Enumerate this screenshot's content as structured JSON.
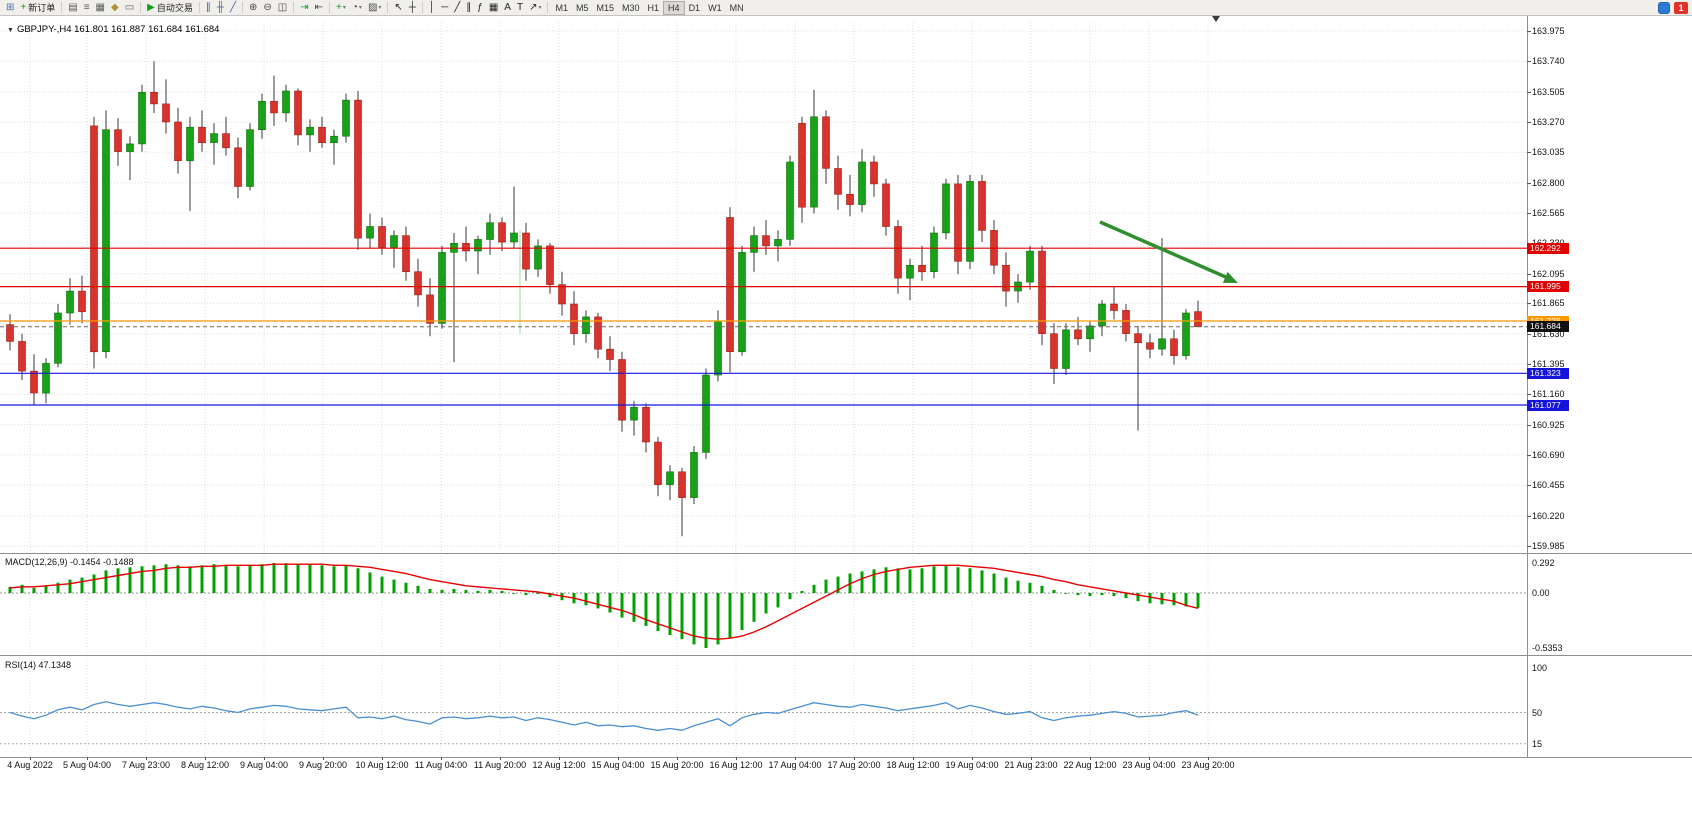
{
  "chart": {
    "title": "GBPJPY-,H4 161.801 161.887 161.684 161.684",
    "symbol": "GBPJPY-",
    "timeframe": "H4",
    "ohlc": {
      "open": "161.801",
      "high": "161.887",
      "low": "161.684",
      "close": "161.684"
    }
  },
  "icons": {
    "one_click_trading": "▼"
  },
  "toolbar": {
    "items": [
      {
        "kind": "icon",
        "base": "new-chart",
        "glyph": "⊞",
        "color": "#4a6fae"
      },
      {
        "kind": "button",
        "base": "new-order",
        "glyph": "+",
        "color": "#1f9d1f",
        "label": "新订单"
      },
      {
        "kind": "sep"
      },
      {
        "kind": "icon",
        "base": "profiles",
        "glyph": "▤",
        "color": "#5a5a5a"
      },
      {
        "kind": "icon",
        "base": "market-watch",
        "glyph": "≡",
        "color": "#5a5a5a"
      },
      {
        "kind": "icon",
        "base": "data-window",
        "glyph": "▦",
        "color": "#5a5a5a"
      },
      {
        "kind": "icon",
        "base": "navigator",
        "glyph": "◆",
        "color": "#b08f2e"
      },
      {
        "kind": "icon",
        "base": "terminal",
        "glyph": "▭",
        "color": "#5a5a5a"
      },
      {
        "kind": "sep"
      },
      {
        "kind": "button",
        "base": "auto-trading",
        "glyph": "▶",
        "color": "#16a016",
        "label": "自动交易"
      },
      {
        "kind": "sep"
      },
      {
        "kind": "icon",
        "base": "bar-chart-mode",
        "glyph": "∥",
        "color": "#39629c"
      },
      {
        "kind": "icon",
        "base": "candlestick-mode",
        "glyph": "╫",
        "color": "#39629c"
      },
      {
        "kind": "icon",
        "base": "line-chart-mode",
        "glyph": "╱",
        "color": "#39629c"
      },
      {
        "kind": "sep"
      },
      {
        "kind": "icon",
        "base": "zoom-in",
        "glyph": "⊕",
        "color": "#4a4a4a"
      },
      {
        "kind": "icon",
        "base": "zoom-out",
        "glyph": "⊖",
        "color": "#4a4a4a"
      },
      {
        "kind": "icon",
        "base": "tile-windows",
        "glyph": "◫",
        "color": "#4a4a4a"
      },
      {
        "kind": "sep"
      },
      {
        "kind": "icon",
        "base": "auto-scroll",
        "glyph": "⇥",
        "color": "#1f9d1f"
      },
      {
        "kind": "icon",
        "base": "chart-shift",
        "glyph": "⇤",
        "color": "#4a4a4a"
      },
      {
        "kind": "sep"
      },
      {
        "kind": "dd",
        "base": "indicators",
        "glyph": "+",
        "color": "#1f9d1f"
      },
      {
        "kind": "dd",
        "base": "periods",
        "glyph": "◔",
        "color": "#4a4a4a"
      },
      {
        "kind": "dd",
        "base": "templates",
        "glyph": "▨",
        "color": "#4a4a4a"
      },
      {
        "kind": "sep"
      },
      {
        "kind": "icon",
        "base": "cursor",
        "glyph": "↖",
        "color": "#222"
      },
      {
        "kind": "icon",
        "base": "crosshair",
        "glyph": "┼",
        "color": "#222"
      },
      {
        "kind": "sep"
      },
      {
        "kind": "icon",
        "base": "vertical-line",
        "glyph": "│",
        "color": "#222"
      },
      {
        "kind": "icon",
        "base": "horizontal-line",
        "glyph": "─",
        "color": "#222"
      },
      {
        "kind": "icon",
        "base": "trendline",
        "glyph": "╱",
        "color": "#222"
      },
      {
        "kind": "icon",
        "base": "equidistant-channel",
        "glyph": "∥",
        "color": "#222"
      },
      {
        "kind": "icon",
        "base": "fibonacci",
        "glyph": "ƒ",
        "color": "#222"
      },
      {
        "kind": "icon",
        "base": "cycle-lines",
        "glyph": "▦",
        "color": "#222"
      },
      {
        "kind": "icon",
        "base": "text",
        "glyph": "A",
        "color": "#222"
      },
      {
        "kind": "icon",
        "base": "text-label",
        "glyph": "T",
        "color": "#222"
      },
      {
        "kind": "dd",
        "base": "arrows-tool",
        "glyph": "↗",
        "color": "#222"
      },
      {
        "kind": "sep"
      }
    ],
    "timeframes": [
      "M1",
      "M5",
      "M15",
      "M30",
      "H1",
      "H4",
      "D1",
      "W1",
      "MN"
    ],
    "active_timeframe": "H4",
    "notification_count": "1"
  },
  "price_axis": [
    "163.975",
    "163.740",
    "163.505",
    "163.270",
    "163.035",
    "162.800",
    "162.565",
    "162.330",
    "162.095",
    "161.865",
    "161.630",
    "161.395",
    "161.160",
    "160.925",
    "160.690",
    "160.455",
    "160.220",
    "159.985"
  ],
  "levels": [
    {
      "price": 162.292,
      "label": "162.292",
      "color": "#e00000",
      "kind": "resistance"
    },
    {
      "price": 161.995,
      "label": "161.995",
      "color": "#e00000",
      "kind": "resistance"
    },
    {
      "price": 161.728,
      "label": "161.728",
      "color": "#ff9800",
      "kind": "pivot"
    },
    {
      "price": 161.684,
      "label": "161.684",
      "color": "#111111",
      "kind": "current-price",
      "dashed": true
    },
    {
      "price": 161.323,
      "label": "161.323",
      "color": "#1414dc",
      "kind": "support"
    },
    {
      "price": 161.077,
      "label": "161.077",
      "color": "#1414dc",
      "kind": "support"
    }
  ],
  "macd": {
    "label": "MACD(12,26,9) -0.1454 -0.1488",
    "axis_labels": [
      "0.292",
      "0.00",
      "-0.5353"
    ],
    "values": [
      "-0.1454",
      "-0.1488"
    ]
  },
  "rsi": {
    "label": "RSI(14) 47.1348",
    "value": "47.1348",
    "axis_labels": [
      "100",
      "50",
      "15"
    ],
    "levels": [
      50,
      15
    ]
  },
  "time_axis": [
    "4 Aug 2022",
    "5 Aug 04:00",
    "7 Aug 23:00",
    "8 Aug 12:00",
    "9 Aug 04:00",
    "9 Aug 20:00",
    "10 Aug 12:00",
    "11 Aug 04:00",
    "11 Aug 20:00",
    "12 Aug 12:00",
    "15 Aug 04:00",
    "15 Aug 20:00",
    "16 Aug 12:00",
    "17 Aug 04:00",
    "17 Aug 20:00",
    "18 Aug 12:00",
    "19 Aug 04:00",
    "21 Aug 23:00",
    "22 Aug 12:00",
    "23 Aug 04:00",
    "23 Aug 20:00"
  ],
  "annotations": {
    "trend_arrow": {
      "present": true,
      "color": "#2f8f2f",
      "direction": "down-right"
    }
  },
  "chart_data": {
    "type": "candlestick",
    "title": "GBPJPY- H4",
    "ylim": [
      159.985,
      163.975
    ],
    "candles": [
      [
        161.7,
        161.78,
        161.5,
        161.57
      ],
      [
        161.57,
        161.63,
        161.27,
        161.34
      ],
      [
        161.34,
        161.47,
        161.08,
        161.17
      ],
      [
        161.17,
        161.44,
        161.09,
        161.4
      ],
      [
        161.4,
        161.86,
        161.37,
        161.79
      ],
      [
        161.79,
        162.06,
        161.7,
        161.96
      ],
      [
        161.96,
        162.08,
        161.71,
        161.8
      ],
      [
        163.24,
        163.31,
        161.36,
        161.49
      ],
      [
        161.49,
        163.36,
        161.44,
        163.21
      ],
      [
        163.21,
        163.3,
        162.93,
        163.04
      ],
      [
        163.04,
        163.16,
        162.82,
        163.1
      ],
      [
        163.1,
        163.56,
        163.04,
        163.5
      ],
      [
        163.5,
        163.74,
        163.34,
        163.41
      ],
      [
        163.41,
        163.6,
        163.18,
        163.27
      ],
      [
        163.27,
        163.38,
        162.87,
        162.97
      ],
      [
        162.97,
        163.31,
        162.58,
        163.23
      ],
      [
        163.23,
        163.36,
        163.04,
        163.11
      ],
      [
        163.11,
        163.26,
        162.94,
        163.18
      ],
      [
        163.18,
        163.31,
        163.01,
        163.07
      ],
      [
        163.07,
        163.15,
        162.68,
        162.77
      ],
      [
        162.77,
        163.26,
        162.74,
        163.21
      ],
      [
        163.21,
        163.49,
        163.14,
        163.43
      ],
      [
        163.43,
        163.63,
        163.24,
        163.34
      ],
      [
        163.34,
        163.56,
        163.27,
        163.51
      ],
      [
        163.51,
        163.53,
        163.09,
        163.17
      ],
      [
        163.17,
        163.29,
        163.04,
        163.23
      ],
      [
        163.23,
        163.31,
        163.07,
        163.11
      ],
      [
        163.11,
        163.21,
        162.94,
        163.16
      ],
      [
        163.16,
        163.49,
        163.11,
        163.44
      ],
      [
        163.44,
        163.51,
        162.28,
        162.37
      ],
      [
        162.37,
        162.56,
        162.29,
        162.46
      ],
      [
        162.46,
        162.53,
        162.24,
        162.3
      ],
      [
        162.3,
        162.43,
        162.14,
        162.39
      ],
      [
        162.39,
        162.46,
        162.04,
        162.11
      ],
      [
        162.11,
        162.21,
        161.84,
        161.93
      ],
      [
        161.93,
        162.06,
        161.61,
        161.71
      ],
      [
        161.71,
        162.31,
        161.67,
        162.26
      ],
      [
        162.26,
        162.41,
        161.41,
        162.33
      ],
      [
        162.33,
        162.46,
        162.19,
        162.27
      ],
      [
        162.27,
        162.39,
        162.09,
        162.36
      ],
      [
        162.36,
        162.56,
        162.24,
        162.49
      ],
      [
        162.49,
        162.53,
        162.27,
        162.34
      ],
      [
        162.34,
        162.77,
        162.29,
        162.41
      ],
      [
        162.41,
        162.49,
        162.04,
        162.13
      ],
      [
        162.13,
        162.36,
        162.07,
        162.31
      ],
      [
        162.31,
        162.33,
        161.94,
        162.01
      ],
      [
        162.01,
        162.11,
        161.77,
        161.86
      ],
      [
        161.86,
        161.96,
        161.54,
        161.63
      ],
      [
        161.63,
        161.81,
        161.56,
        161.76
      ],
      [
        161.76,
        161.79,
        161.44,
        161.51
      ],
      [
        161.51,
        161.61,
        161.34,
        161.43
      ],
      [
        161.43,
        161.49,
        160.87,
        160.96
      ],
      [
        160.96,
        161.11,
        160.84,
        161.06
      ],
      [
        161.06,
        161.09,
        160.71,
        160.79
      ],
      [
        160.79,
        160.83,
        160.37,
        160.46
      ],
      [
        160.46,
        160.61,
        160.34,
        160.56
      ],
      [
        160.56,
        160.59,
        160.06,
        160.36
      ],
      [
        160.36,
        160.76,
        160.31,
        160.71
      ],
      [
        160.71,
        161.36,
        160.66,
        161.31
      ],
      [
        161.31,
        161.81,
        161.26,
        161.73
      ],
      [
        162.53,
        162.61,
        161.33,
        161.49
      ],
      [
        161.49,
        162.31,
        161.46,
        162.26
      ],
      [
        162.26,
        162.46,
        162.11,
        162.39
      ],
      [
        162.39,
        162.51,
        162.24,
        162.31
      ],
      [
        162.31,
        162.43,
        162.19,
        162.36
      ],
      [
        162.36,
        163.01,
        162.31,
        162.96
      ],
      [
        163.26,
        163.31,
        162.49,
        162.61
      ],
      [
        162.61,
        163.52,
        162.56,
        163.31
      ],
      [
        163.31,
        163.36,
        162.79,
        162.91
      ],
      [
        162.91,
        163.01,
        162.59,
        162.71
      ],
      [
        162.71,
        162.86,
        162.54,
        162.63
      ],
      [
        162.63,
        163.06,
        162.57,
        162.96
      ],
      [
        162.96,
        163.01,
        162.69,
        162.79
      ],
      [
        162.79,
        162.83,
        162.39,
        162.46
      ],
      [
        162.46,
        162.51,
        161.94,
        162.06
      ],
      [
        162.06,
        162.21,
        161.89,
        162.16
      ],
      [
        162.16,
        162.31,
        162.04,
        162.11
      ],
      [
        162.11,
        162.46,
        162.06,
        162.41
      ],
      [
        162.41,
        162.83,
        162.36,
        162.79
      ],
      [
        162.79,
        162.86,
        162.09,
        162.19
      ],
      [
        162.19,
        162.86,
        162.13,
        162.81
      ],
      [
        162.81,
        162.86,
        162.34,
        162.43
      ],
      [
        162.43,
        162.51,
        162.09,
        162.16
      ],
      [
        162.16,
        162.26,
        161.84,
        161.96
      ],
      [
        161.96,
        162.09,
        161.87,
        162.03
      ],
      [
        162.03,
        162.31,
        161.97,
        162.27
      ],
      [
        162.27,
        162.31,
        161.54,
        161.63
      ],
      [
        161.63,
        161.71,
        161.24,
        161.36
      ],
      [
        161.36,
        161.71,
        161.31,
        161.66
      ],
      [
        161.66,
        161.76,
        161.54,
        161.59
      ],
      [
        161.59,
        161.73,
        161.49,
        161.69
      ],
      [
        161.69,
        161.89,
        161.61,
        161.86
      ],
      [
        161.86,
        162.0,
        161.74,
        161.81
      ],
      [
        161.81,
        161.86,
        161.57,
        161.63
      ],
      [
        161.63,
        161.69,
        160.88,
        161.56
      ],
      [
        161.56,
        161.63,
        161.44,
        161.51
      ],
      [
        161.51,
        162.37,
        161.46,
        161.59
      ],
      [
        161.59,
        161.66,
        161.39,
        161.46
      ],
      [
        161.46,
        161.82,
        161.43,
        161.79
      ],
      [
        161.801,
        161.887,
        161.684,
        161.684
      ]
    ],
    "macd_histogram": [
      0.06,
      0.08,
      0.05,
      0.07,
      0.1,
      0.13,
      0.15,
      0.18,
      0.22,
      0.24,
      0.25,
      0.26,
      0.27,
      0.28,
      0.27,
      0.26,
      0.27,
      0.28,
      0.27,
      0.26,
      0.27,
      0.28,
      0.292,
      0.29,
      0.28,
      0.28,
      0.27,
      0.26,
      0.27,
      0.24,
      0.2,
      0.16,
      0.13,
      0.1,
      0.07,
      0.04,
      0.03,
      0.04,
      0.03,
      0.02,
      0.03,
      0.02,
      0.0,
      -0.02,
      -0.01,
      -0.04,
      -0.07,
      -0.1,
      -0.12,
      -0.15,
      -0.19,
      -0.24,
      -0.28,
      -0.32,
      -0.37,
      -0.41,
      -0.45,
      -0.5,
      -0.5353,
      -0.5,
      -0.44,
      -0.36,
      -0.28,
      -0.2,
      -0.14,
      -0.06,
      0.02,
      0.08,
      0.13,
      0.16,
      0.19,
      0.21,
      0.23,
      0.25,
      0.24,
      0.23,
      0.24,
      0.26,
      0.27,
      0.25,
      0.24,
      0.22,
      0.19,
      0.15,
      0.12,
      0.1,
      0.07,
      0.03,
      0.0,
      -0.02,
      -0.03,
      -0.02,
      -0.03,
      -0.05,
      -0.08,
      -0.1,
      -0.11,
      -0.12,
      -0.13,
      -0.1454
    ],
    "macd_signal": [
      0.05,
      0.06,
      0.06,
      0.07,
      0.08,
      0.09,
      0.11,
      0.13,
      0.15,
      0.17,
      0.19,
      0.21,
      0.22,
      0.24,
      0.25,
      0.25,
      0.26,
      0.26,
      0.27,
      0.27,
      0.27,
      0.27,
      0.28,
      0.28,
      0.28,
      0.28,
      0.28,
      0.27,
      0.27,
      0.26,
      0.25,
      0.23,
      0.21,
      0.19,
      0.16,
      0.13,
      0.11,
      0.09,
      0.07,
      0.06,
      0.05,
      0.04,
      0.03,
      0.02,
      0.01,
      -0.01,
      -0.03,
      -0.05,
      -0.08,
      -0.11,
      -0.14,
      -0.17,
      -0.21,
      -0.26,
      -0.3,
      -0.34,
      -0.38,
      -0.42,
      -0.44,
      -0.45,
      -0.44,
      -0.42,
      -0.38,
      -0.33,
      -0.27,
      -0.21,
      -0.15,
      -0.09,
      -0.03,
      0.03,
      0.09,
      0.14,
      0.18,
      0.21,
      0.23,
      0.25,
      0.26,
      0.27,
      0.27,
      0.27,
      0.26,
      0.25,
      0.24,
      0.22,
      0.2,
      0.18,
      0.16,
      0.13,
      0.11,
      0.08,
      0.06,
      0.04,
      0.02,
      0.0,
      -0.02,
      -0.04,
      -0.06,
      -0.08,
      -0.12,
      -0.1488
    ],
    "rsi_values": [
      50,
      46,
      43,
      47,
      53,
      56,
      53,
      59,
      62,
      59,
      57,
      59,
      61,
      59,
      56,
      54,
      57,
      55,
      52,
      50,
      54,
      56,
      58,
      57,
      54,
      53,
      52,
      54,
      56,
      44,
      45,
      43,
      46,
      42,
      40,
      37,
      44,
      45,
      43,
      44,
      46,
      44,
      45,
      41,
      44,
      42,
      39,
      36,
      39,
      35,
      36,
      34,
      35,
      32,
      30,
      32,
      30,
      35,
      39,
      43,
      35,
      44,
      48,
      50,
      49,
      53,
      57,
      61,
      59,
      57,
      56,
      59,
      57,
      55,
      52,
      54,
      56,
      58,
      61,
      54,
      58,
      55,
      51,
      48,
      49,
      51,
      44,
      41,
      44,
      46,
      47,
      49,
      51,
      49,
      45,
      46,
      47,
      50,
      52,
      47.13
    ]
  }
}
